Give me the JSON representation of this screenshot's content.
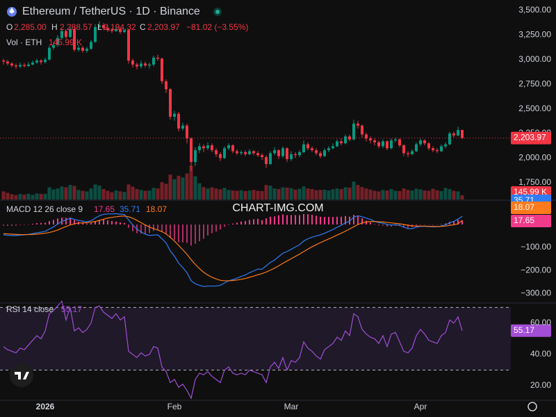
{
  "header": {
    "symbol": "Ethereum / TetherUS · 1D · Binance",
    "o_key": "O",
    "o_val": "2,285.00",
    "h_key": "H",
    "h_val": "2,288.57",
    "l_key": "L",
    "l_val": "2,194.32",
    "c_key": "C",
    "c_val": "2,203.97",
    "change": "−81.02 (−3.55%)",
    "vol_key": "Vol · ETH",
    "vol_val": "145.99 K",
    "macd_key": "MACD 12 26 close 9",
    "macd_values": [
      "17.65",
      "35.71",
      "18.07"
    ],
    "rsi_key": "RSI 14 close",
    "rsi_value": "55.17"
  },
  "watermark": "CHART-IMG.COM",
  "chart_data": [
    {
      "type": "candlestick",
      "up_color": "#089981",
      "down_color": "#f23645",
      "categories": [
        null,
        null,
        null,
        null,
        null,
        null,
        null,
        null,
        null,
        null,
        "2026",
        null,
        null,
        null,
        null,
        null,
        null,
        null,
        null,
        null,
        null,
        null,
        null,
        null,
        null,
        null,
        null,
        null,
        null,
        null,
        null,
        null,
        null,
        null,
        null,
        null,
        null,
        null,
        null,
        null,
        null,
        "Feb",
        null,
        null,
        null,
        null,
        null,
        null,
        null,
        null,
        null,
        null,
        null,
        null,
        null,
        null,
        null,
        null,
        null,
        null,
        null,
        null,
        null,
        null,
        null,
        null,
        null,
        null,
        null,
        "Mar",
        null,
        null,
        null,
        null,
        null,
        null,
        null,
        null,
        null,
        null,
        null,
        null,
        null,
        null,
        null,
        null,
        null,
        null,
        null,
        null,
        null,
        null,
        null,
        null,
        null,
        null,
        null,
        null,
        null,
        null,
        "Apr",
        null,
        null,
        null,
        null,
        null,
        null,
        null,
        null,
        null,
        null
      ],
      "open": [
        2990,
        2980,
        2960,
        2940,
        2930,
        2945,
        2935,
        2950,
        2970,
        2990,
        2975,
        3000,
        3120,
        3150,
        3220,
        3290,
        3230,
        3310,
        3100,
        3120,
        3090,
        3110,
        3180,
        3330,
        3350,
        3320,
        3300,
        3290,
        3310,
        3280,
        3300,
        2990,
        2950,
        2930,
        2960,
        2940,
        2950,
        3020,
        3010,
        2780,
        2700,
        2420,
        2450,
        2300,
        2330,
        2200,
        1960,
        2080,
        2120,
        2100,
        2130,
        2080,
        2040,
        2000,
        2100,
        2130,
        2070,
        2050,
        2060,
        2040,
        2070,
        2050,
        2030,
        2010,
        1940,
        2050,
        2080,
        2020,
        2100,
        1990,
        2040,
        2030,
        2060,
        2140,
        2100,
        2080,
        2050,
        2020,
        2080,
        2100,
        2120,
        2170,
        2150,
        2220,
        2190,
        2350,
        2330,
        2240,
        2200,
        2180,
        2160,
        2120,
        2170,
        2100,
        2180,
        2190,
        2130,
        2050,
        2040,
        2070,
        2140,
        2180,
        2150,
        2100,
        2080,
        2070,
        2120,
        2140,
        2250,
        2230,
        2285
      ],
      "high": [
        3010,
        3000,
        2975,
        2960,
        2970,
        2965,
        2975,
        2990,
        3010,
        3005,
        3020,
        3140,
        3180,
        3250,
        3310,
        3300,
        3330,
        3320,
        3150,
        3140,
        3130,
        3200,
        3360,
        3390,
        3370,
        3340,
        3320,
        3330,
        3320,
        3310,
        3310,
        3010,
        2970,
        2990,
        2980,
        2970,
        3040,
        3050,
        3020,
        2800,
        2710,
        2480,
        2470,
        2360,
        2350,
        2210,
        2110,
        2150,
        2140,
        2160,
        2150,
        2100,
        2060,
        2120,
        2150,
        2140,
        2090,
        2080,
        2080,
        2090,
        2080,
        2070,
        2050,
        2030,
        2070,
        2110,
        2090,
        2120,
        2110,
        2070,
        2060,
        2080,
        2180,
        2160,
        2120,
        2100,
        2070,
        2100,
        2120,
        2150,
        2190,
        2200,
        2240,
        2240,
        2390,
        2380,
        2340,
        2260,
        2220,
        2200,
        2180,
        2190,
        2180,
        2200,
        2210,
        2200,
        2140,
        2070,
        2090,
        2160,
        2200,
        2190,
        2160,
        2120,
        2100,
        2140,
        2160,
        2270,
        2270,
        2320,
        2288.57
      ],
      "low": [
        2950,
        2940,
        2920,
        2905,
        2915,
        2920,
        2925,
        2940,
        2955,
        2950,
        2960,
        2990,
        3100,
        3130,
        3200,
        3210,
        3220,
        3080,
        3080,
        3070,
        3070,
        3100,
        3170,
        3310,
        3300,
        3280,
        3270,
        3280,
        3260,
        3270,
        2960,
        2920,
        2900,
        2910,
        2920,
        2910,
        2930,
        2990,
        2750,
        2660,
        2390,
        2380,
        2270,
        2280,
        2150,
        1870,
        1920,
        2050,
        2060,
        2080,
        2060,
        2010,
        1970,
        1990,
        2080,
        2050,
        2030,
        2030,
        2020,
        2030,
        2030,
        2010,
        1980,
        1900,
        1930,
        2030,
        1990,
        2000,
        1960,
        1970,
        2000,
        2010,
        2050,
        2080,
        2060,
        2030,
        2000,
        2010,
        2060,
        2090,
        2110,
        2130,
        2140,
        2170,
        2180,
        2300,
        2210,
        2170,
        2150,
        2130,
        2100,
        2100,
        2080,
        2090,
        2160,
        2110,
        2020,
        2010,
        2030,
        2060,
        2120,
        2130,
        2080,
        2060,
        2050,
        2060,
        2100,
        2130,
        2210,
        2220,
        2194.32
      ],
      "close": [
        2980,
        2960,
        2940,
        2930,
        2945,
        2935,
        2950,
        2970,
        2990,
        2975,
        3000,
        3120,
        3150,
        3220,
        3290,
        3230,
        3310,
        3100,
        3120,
        3090,
        3110,
        3180,
        3330,
        3350,
        3320,
        3300,
        3290,
        3310,
        3280,
        3300,
        2990,
        2950,
        2930,
        2960,
        2940,
        2950,
        3020,
        3010,
        2780,
        2700,
        2420,
        2450,
        2300,
        2330,
        2200,
        1960,
        2080,
        2120,
        2100,
        2130,
        2080,
        2040,
        2000,
        2100,
        2130,
        2070,
        2050,
        2060,
        2040,
        2070,
        2050,
        2030,
        2010,
        1940,
        2050,
        2080,
        2020,
        2100,
        1990,
        2040,
        2030,
        2060,
        2140,
        2100,
        2080,
        2050,
        2020,
        2080,
        2100,
        2120,
        2170,
        2150,
        2220,
        2190,
        2350,
        2330,
        2240,
        2200,
        2180,
        2160,
        2120,
        2170,
        2100,
        2180,
        2190,
        2130,
        2050,
        2040,
        2070,
        2140,
        2180,
        2150,
        2100,
        2080,
        2070,
        2120,
        2140,
        2250,
        2230,
        2285,
        2203.97
      ],
      "volume": [
        280,
        230,
        180,
        150,
        190,
        170,
        200,
        160,
        210,
        190,
        200,
        420,
        350,
        380,
        450,
        420,
        500,
        470,
        330,
        300,
        280,
        380,
        520,
        480,
        360,
        300,
        250,
        310,
        280,
        260,
        520,
        440,
        360,
        330,
        300,
        310,
        400,
        380,
        600,
        540,
        860,
        700,
        820,
        760,
        900,
        1170,
        800,
        560,
        430,
        380,
        420,
        380,
        350,
        400,
        330,
        310,
        300,
        320,
        290,
        310,
        330,
        300,
        290,
        500,
        480,
        380,
        360,
        420,
        410,
        390,
        340,
        370,
        450,
        380,
        360,
        320,
        330,
        340,
        310,
        350,
        380,
        360,
        420,
        410,
        620,
        500,
        430,
        380,
        340,
        300,
        280,
        330,
        310,
        360,
        300,
        290,
        380,
        330,
        310,
        370,
        350,
        310,
        300,
        370,
        320,
        290,
        400,
        360,
        300,
        280,
        145.99
      ],
      "vol_ylim": [
        0,
        1200
      ],
      "ylim": [
        1580,
        3605
      ],
      "yticks": [
        {
          "value": 1750,
          "label": "1,750.00"
        },
        {
          "value": 2000,
          "label": "2,000.00"
        },
        {
          "value": 2250,
          "label": "2,250.00"
        },
        {
          "value": 2500,
          "label": "2,500.00"
        },
        {
          "value": 2750,
          "label": "2,750.00"
        },
        {
          "value": 3000,
          "label": "3,000.00"
        },
        {
          "value": 3250,
          "label": "3,250.00"
        },
        {
          "value": 3500,
          "label": "3,500.00"
        }
      ],
      "last_label": "2,203.97",
      "volume_label": "145.99 K",
      "grid": false
    },
    {
      "type": "macd",
      "ylim": [
        -339,
        103
      ],
      "yticks": [
        {
          "value": -100,
          "label": "−100.00"
        },
        {
          "value": -200,
          "label": "−200.00"
        },
        {
          "value": -300,
          "label": "−300.00"
        }
      ],
      "series": [
        {
          "kind": "histogram",
          "color": "#f23a8a",
          "last_label": "17.65",
          "values": [
            -5,
            -6,
            -6,
            -5,
            -2,
            -1,
            1,
            3,
            6,
            7,
            8,
            15,
            20,
            26,
            30,
            29,
            30,
            19,
            12,
            7,
            4,
            6,
            15,
            20,
            21,
            18,
            15,
            13,
            9,
            7,
            -14,
            -29,
            -38,
            -40,
            -40,
            -37,
            -28,
            -21,
            -31,
            -39,
            -59,
            -66,
            -77,
            -78,
            -80,
            -92,
            -84,
            -73,
            -62,
            -48,
            -38,
            -31,
            -22,
            -10,
            0,
            4,
            8,
            13,
            15,
            20,
            23,
            25,
            19,
            27,
            34,
            35,
            40,
            44,
            41,
            41,
            41,
            41,
            46,
            45,
            42,
            38,
            34,
            33,
            33,
            33,
            34,
            34,
            37,
            34,
            42,
            38,
            27,
            17,
            9,
            1,
            -4,
            -5,
            -9,
            -9,
            -6,
            -7,
            -12,
            -15,
            -12,
            -5,
            -1,
            -1,
            -1,
            -2,
            -1,
            2,
            5,
            12,
            15,
            21,
            17.65
          ]
        },
        {
          "kind": "line",
          "color": "#2f7cf6",
          "last_label": "35.71",
          "values": [
            -45,
            -47,
            -48,
            -48,
            -46,
            -45,
            -43,
            -40,
            -36,
            -33,
            -30,
            -20,
            -10,
            2,
            14,
            20,
            28,
            22,
            18,
            14,
            12,
            16,
            28,
            38,
            44,
            46,
            46,
            47,
            45,
            44,
            20,
            -2,
            -20,
            -32,
            -42,
            -48,
            -46,
            -45,
            -62,
            -80,
            -115,
            -138,
            -168,
            -188,
            -210,
            -245,
            -258,
            -265,
            -270,
            -268,
            -268,
            -268,
            -265,
            -255,
            -245,
            -240,
            -234,
            -226,
            -220,
            -210,
            -202,
            -194,
            -195,
            -180,
            -165,
            -155,
            -140,
            -125,
            -118,
            -108,
            -98,
            -88,
            -72,
            -62,
            -55,
            -50,
            -45,
            -38,
            -30,
            -22,
            -12,
            -4,
            8,
            14,
            32,
            38,
            34,
            28,
            22,
            14,
            8,
            6,
            0,
            -2,
            -1,
            -4,
            -12,
            -18,
            -18,
            -12,
            -8,
            -8,
            -9,
            -10,
            -10,
            -6,
            -2,
            8,
            14,
            24,
            35.71
          ]
        },
        {
          "kind": "line",
          "color": "#ff7a1a",
          "last_label": "18.07",
          "values": [
            -40,
            -41,
            -42,
            -43,
            -44,
            -44,
            -44,
            -43,
            -42,
            -40,
            -38,
            -35,
            -30,
            -24,
            -16,
            -9,
            -2,
            3,
            6,
            7,
            8,
            10,
            13,
            18,
            23,
            28,
            31,
            34,
            36,
            37,
            34,
            27,
            18,
            8,
            -2,
            -11,
            -18,
            -24,
            -31,
            -41,
            -56,
            -72,
            -91,
            -110,
            -130,
            -153,
            -174,
            -192,
            -208,
            -220,
            -230,
            -237,
            -243,
            -245,
            -245,
            -244,
            -242,
            -239,
            -235,
            -230,
            -225,
            -219,
            -214,
            -207,
            -199,
            -190,
            -180,
            -169,
            -159,
            -149,
            -139,
            -129,
            -118,
            -107,
            -97,
            -88,
            -79,
            -71,
            -63,
            -55,
            -46,
            -38,
            -29,
            -20,
            -10,
            0,
            7,
            11,
            13,
            13,
            12,
            11,
            9,
            7,
            5,
            3,
            0,
            -3,
            -6,
            -7,
            -7,
            -7,
            -8,
            -8,
            -9,
            -8,
            -7,
            -4,
            -1,
            3,
            18.07
          ]
        }
      ]
    },
    {
      "type": "line",
      "ylim": [
        11.1,
        72.4
      ],
      "bands": [
        30,
        70
      ],
      "band_color": "#7e57c2",
      "yticks": [
        {
          "value": 20,
          "label": "20.00"
        },
        {
          "value": 40,
          "label": "40.00"
        },
        {
          "value": 60,
          "label": "60.00"
        }
      ],
      "series": [
        {
          "color": "#a24ed6",
          "last_label": "55.17",
          "values": [
            45,
            43,
            42,
            41,
            44,
            43,
            46,
            49,
            52,
            50,
            55,
            66,
            68,
            71,
            74,
            62,
            70,
            55,
            57,
            54,
            56,
            60,
            70,
            71,
            67,
            65,
            63,
            66,
            62,
            64,
            42,
            40,
            38,
            41,
            39,
            40,
            45,
            44,
            32,
            29,
            22,
            24,
            19,
            21,
            17,
            12,
            24,
            28,
            27,
            29,
            26,
            24,
            22,
            30,
            32,
            28,
            27,
            28,
            27,
            30,
            29,
            28,
            27,
            22,
            32,
            35,
            31,
            38,
            30,
            36,
            35,
            38,
            48,
            44,
            42,
            39,
            37,
            43,
            45,
            47,
            51,
            49,
            55,
            52,
            66,
            64,
            56,
            53,
            51,
            50,
            47,
            52,
            45,
            53,
            54,
            48,
            42,
            41,
            44,
            52,
            56,
            53,
            49,
            48,
            47,
            52,
            54,
            62,
            60,
            64,
            55.17
          ]
        }
      ]
    }
  ]
}
